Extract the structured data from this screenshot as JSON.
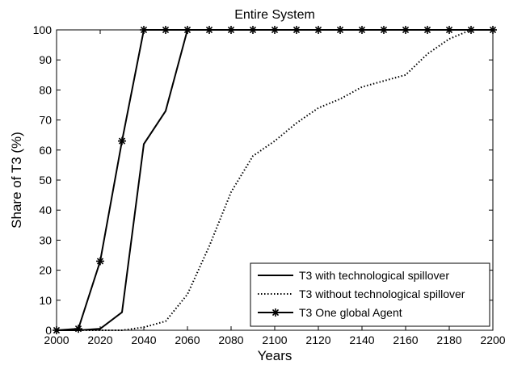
{
  "chart_data": {
    "type": "line",
    "title": "Entire System",
    "xlabel": "Years",
    "ylabel": "Share of T3 (%)",
    "xlim": [
      2000,
      2200
    ],
    "ylim": [
      0,
      100
    ],
    "xticks": [
      2000,
      2020,
      2040,
      2060,
      2080,
      2100,
      2120,
      2140,
      2160,
      2180,
      2200
    ],
    "yticks": [
      0,
      10,
      20,
      30,
      40,
      50,
      60,
      70,
      80,
      90,
      100
    ],
    "grid": false,
    "legend_position": "bottom-right",
    "series": [
      {
        "name": "T3 with technological spillover",
        "style": "solid",
        "marker": "none",
        "x": [
          2000,
          2010,
          2020,
          2030,
          2040,
          2050,
          2060,
          2070,
          2080,
          2090,
          2100,
          2110,
          2120,
          2130,
          2140,
          2150,
          2160,
          2170,
          2180,
          2190,
          2200
        ],
        "values": [
          0,
          0,
          0.5,
          6,
          62,
          73,
          100,
          100,
          100,
          100,
          100,
          100,
          100,
          100,
          100,
          100,
          100,
          100,
          100,
          100,
          100
        ]
      },
      {
        "name": "T3 without technological spillover",
        "style": "dotted",
        "marker": "none",
        "x": [
          2000,
          2010,
          2020,
          2030,
          2040,
          2050,
          2060,
          2070,
          2080,
          2090,
          2100,
          2110,
          2120,
          2130,
          2140,
          2150,
          2160,
          2170,
          2180,
          2190,
          2200
        ],
        "values": [
          0,
          0,
          0,
          0,
          1,
          3,
          12,
          28,
          46,
          58,
          63,
          69,
          74,
          77,
          81,
          83,
          85,
          92,
          97,
          100,
          100
        ]
      },
      {
        "name": "T3 One global Agent",
        "style": "solid",
        "marker": "asterisk",
        "x": [
          2000,
          2010,
          2020,
          2030,
          2040,
          2050,
          2060,
          2070,
          2080,
          2090,
          2100,
          2110,
          2120,
          2130,
          2140,
          2150,
          2160,
          2170,
          2180,
          2190,
          2200
        ],
        "values": [
          0,
          0.5,
          23,
          63,
          100,
          100,
          100,
          100,
          100,
          100,
          100,
          100,
          100,
          100,
          100,
          100,
          100,
          100,
          100,
          100,
          100
        ]
      }
    ]
  }
}
